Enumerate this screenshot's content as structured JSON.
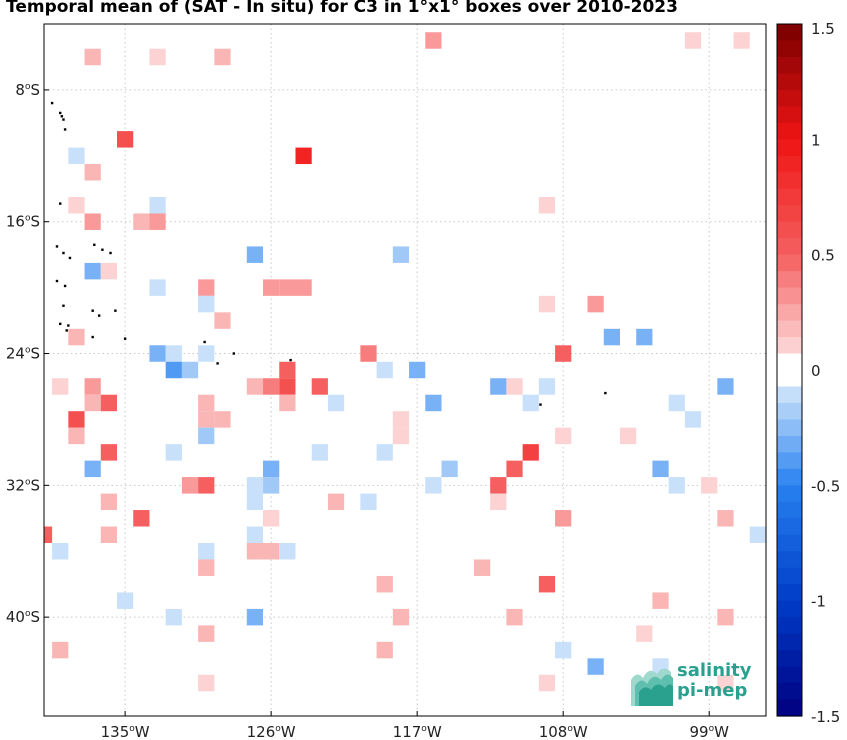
{
  "title": "Temporal mean of (SAT - In situ) for C3 in 1°x1° boxes over 2010-2023",
  "x_ticks": [
    {
      "lon": -135,
      "label": "135",
      "hemi": "W"
    },
    {
      "lon": -126,
      "label": "126",
      "hemi": "W"
    },
    {
      "lon": -117,
      "label": "117",
      "hemi": "W"
    },
    {
      "lon": -108,
      "label": "108",
      "hemi": "W"
    },
    {
      "lon": -99,
      "label": "99",
      "hemi": "W"
    }
  ],
  "y_ticks": [
    {
      "lat": -8,
      "label": "8",
      "hemi": "S"
    },
    {
      "lat": -16,
      "label": "16",
      "hemi": "S"
    },
    {
      "lat": -24,
      "label": "24",
      "hemi": "S"
    },
    {
      "lat": -32,
      "label": "32",
      "hemi": "S"
    },
    {
      "lat": -40,
      "label": "40",
      "hemi": "S"
    }
  ],
  "colorbar": {
    "min": -1.5,
    "max": 1.5,
    "ticks": [
      {
        "value": 1.5,
        "label": "1.5"
      },
      {
        "value": 1,
        "label": "1"
      },
      {
        "value": 0.5,
        "label": "0.5"
      },
      {
        "value": 0,
        "label": "0"
      },
      {
        "value": -0.5,
        "label": "-0.5"
      },
      {
        "value": -1,
        "label": "-1"
      },
      {
        "value": -1.5,
        "label": "-1.5"
      }
    ]
  },
  "logo": {
    "line1": "salinity",
    "line2": "pi-mep",
    "color": "#2aa08f"
  },
  "chart_data": {
    "type": "heatmap",
    "title": "Temporal mean of (SAT - In situ) for C3 in 1°x1° boxes over 2010-2023",
    "xlim": [
      -140,
      -95.5
    ],
    "ylim": [
      -46,
      -4
    ],
    "grid": true,
    "cell_size_deg": 1,
    "cells": [
      {
        "lon": -137,
        "lat": -6,
        "value": 0.2
      },
      {
        "lon": -133,
        "lat": -6,
        "value": 0.1
      },
      {
        "lon": -129,
        "lat": -6,
        "value": 0.2
      },
      {
        "lon": -116,
        "lat": -5,
        "value": 0.3
      },
      {
        "lon": -100,
        "lat": -5,
        "value": 0.1
      },
      {
        "lon": -97,
        "lat": -5,
        "value": 0.1
      },
      {
        "lon": -135,
        "lat": -11,
        "value": 0.6
      },
      {
        "lon": -138,
        "lat": -12,
        "value": -0.1
      },
      {
        "lon": -124,
        "lat": -12,
        "value": 0.9
      },
      {
        "lon": -137,
        "lat": -13,
        "value": 0.2
      },
      {
        "lon": -138,
        "lat": -15,
        "value": 0.1
      },
      {
        "lon": -133,
        "lat": -15,
        "value": -0.1
      },
      {
        "lon": -109,
        "lat": -15,
        "value": 0.1
      },
      {
        "lon": -137,
        "lat": -16,
        "value": 0.3
      },
      {
        "lon": -134,
        "lat": -16,
        "value": 0.2
      },
      {
        "lon": -133,
        "lat": -16,
        "value": 0.3
      },
      {
        "lon": -127,
        "lat": -18,
        "value": -0.3
      },
      {
        "lon": -118,
        "lat": -18,
        "value": -0.2
      },
      {
        "lon": -137,
        "lat": -19,
        "value": -0.3
      },
      {
        "lon": -136,
        "lat": -19,
        "value": 0.1
      },
      {
        "lon": -133,
        "lat": -20,
        "value": -0.1
      },
      {
        "lon": -130,
        "lat": -20,
        "value": 0.3
      },
      {
        "lon": -126,
        "lat": -20,
        "value": 0.3
      },
      {
        "lon": -125,
        "lat": -20,
        "value": 0.3
      },
      {
        "lon": -124,
        "lat": -20,
        "value": 0.3
      },
      {
        "lon": -130,
        "lat": -21,
        "value": -0.1
      },
      {
        "lon": -109,
        "lat": -21,
        "value": 0.1
      },
      {
        "lon": -106,
        "lat": -21,
        "value": 0.3
      },
      {
        "lon": -138,
        "lat": -23,
        "value": 0.2
      },
      {
        "lon": -129,
        "lat": -22,
        "value": 0.2
      },
      {
        "lon": -105,
        "lat": -23,
        "value": -0.3
      },
      {
        "lon": -103,
        "lat": -23,
        "value": -0.3
      },
      {
        "lon": -133,
        "lat": -24,
        "value": -0.3
      },
      {
        "lon": -132,
        "lat": -24,
        "value": -0.1
      },
      {
        "lon": -130,
        "lat": -24,
        "value": -0.1
      },
      {
        "lon": -120,
        "lat": -24,
        "value": 0.4
      },
      {
        "lon": -108,
        "lat": -24,
        "value": 0.5
      },
      {
        "lon": -132,
        "lat": -25,
        "value": -0.4
      },
      {
        "lon": -131,
        "lat": -25,
        "value": -0.2
      },
      {
        "lon": -125,
        "lat": -25,
        "value": 0.5
      },
      {
        "lon": -119,
        "lat": -25,
        "value": -0.1
      },
      {
        "lon": -117,
        "lat": -25,
        "value": -0.3
      },
      {
        "lon": -139,
        "lat": -26,
        "value": 0.1
      },
      {
        "lon": -137,
        "lat": -26,
        "value": 0.3
      },
      {
        "lon": -127,
        "lat": -26,
        "value": 0.2
      },
      {
        "lon": -126,
        "lat": -26,
        "value": 0.4
      },
      {
        "lon": -125,
        "lat": -26,
        "value": 0.6
      },
      {
        "lon": -123,
        "lat": -26,
        "value": 0.5
      },
      {
        "lon": -112,
        "lat": -26,
        "value": -0.3
      },
      {
        "lon": -111,
        "lat": -26,
        "value": 0.1
      },
      {
        "lon": -109,
        "lat": -26,
        "value": -0.1
      },
      {
        "lon": -98,
        "lat": -26,
        "value": -0.3
      },
      {
        "lon": -137,
        "lat": -27,
        "value": 0.2
      },
      {
        "lon": -136,
        "lat": -27,
        "value": 0.5
      },
      {
        "lon": -130,
        "lat": -27,
        "value": 0.2
      },
      {
        "lon": -125,
        "lat": -27,
        "value": 0.2
      },
      {
        "lon": -122,
        "lat": -27,
        "value": -0.1
      },
      {
        "lon": -116,
        "lat": -27,
        "value": -0.3
      },
      {
        "lon": -110,
        "lat": -27,
        "value": -0.1
      },
      {
        "lon": -101,
        "lat": -27,
        "value": -0.1
      },
      {
        "lon": -138,
        "lat": -28,
        "value": 0.6
      },
      {
        "lon": -130,
        "lat": -28,
        "value": 0.2
      },
      {
        "lon": -129,
        "lat": -28,
        "value": 0.2
      },
      {
        "lon": -118,
        "lat": -28,
        "value": 0.1
      },
      {
        "lon": -100,
        "lat": -28,
        "value": -0.1
      },
      {
        "lon": -138,
        "lat": -29,
        "value": 0.2
      },
      {
        "lon": -130,
        "lat": -29,
        "value": -0.2
      },
      {
        "lon": -118,
        "lat": -29,
        "value": 0.1
      },
      {
        "lon": -108,
        "lat": -29,
        "value": 0.1
      },
      {
        "lon": -104,
        "lat": -29,
        "value": 0.1
      },
      {
        "lon": -136,
        "lat": -30,
        "value": 0.5
      },
      {
        "lon": -132,
        "lat": -30,
        "value": -0.1
      },
      {
        "lon": -123,
        "lat": -30,
        "value": -0.1
      },
      {
        "lon": -119,
        "lat": -30,
        "value": -0.1
      },
      {
        "lon": -110,
        "lat": -30,
        "value": 0.7
      },
      {
        "lon": -137,
        "lat": -31,
        "value": -0.3
      },
      {
        "lon": -126,
        "lat": -31,
        "value": -0.3
      },
      {
        "lon": -115,
        "lat": -31,
        "value": -0.2
      },
      {
        "lon": -111,
        "lat": -31,
        "value": 0.5
      },
      {
        "lon": -102,
        "lat": -31,
        "value": -0.3
      },
      {
        "lon": -131,
        "lat": -32,
        "value": 0.3
      },
      {
        "lon": -130,
        "lat": -32,
        "value": 0.5
      },
      {
        "lon": -127,
        "lat": -32,
        "value": -0.1
      },
      {
        "lon": -126,
        "lat": -32,
        "value": -0.2
      },
      {
        "lon": -116,
        "lat": -32,
        "value": -0.1
      },
      {
        "lon": -112,
        "lat": -32,
        "value": 0.5
      },
      {
        "lon": -101,
        "lat": -32,
        "value": -0.1
      },
      {
        "lon": -99,
        "lat": -32,
        "value": 0.1
      },
      {
        "lon": -136,
        "lat": -33,
        "value": 0.2
      },
      {
        "lon": -127,
        "lat": -33,
        "value": -0.1
      },
      {
        "lon": -122,
        "lat": -33,
        "value": 0.2
      },
      {
        "lon": -120,
        "lat": -33,
        "value": -0.1
      },
      {
        "lon": -112,
        "lat": -33,
        "value": 0.1
      },
      {
        "lon": -134,
        "lat": -34,
        "value": 0.5
      },
      {
        "lon": -126,
        "lat": -34,
        "value": 0.1
      },
      {
        "lon": -108,
        "lat": -34,
        "value": 0.3
      },
      {
        "lon": -98,
        "lat": -34,
        "value": 0.2
      },
      {
        "lon": -140,
        "lat": -35,
        "value": 0.5
      },
      {
        "lon": -136,
        "lat": -35,
        "value": 0.2
      },
      {
        "lon": -127,
        "lat": -35,
        "value": -0.1
      },
      {
        "lon": -96,
        "lat": -35,
        "value": -0.1
      },
      {
        "lon": -139,
        "lat": -36,
        "value": -0.1
      },
      {
        "lon": -130,
        "lat": -36,
        "value": -0.1
      },
      {
        "lon": -127,
        "lat": -36,
        "value": 0.2
      },
      {
        "lon": -126,
        "lat": -36,
        "value": 0.2
      },
      {
        "lon": -125,
        "lat": -36,
        "value": -0.1
      },
      {
        "lon": -130,
        "lat": -37,
        "value": 0.2
      },
      {
        "lon": -113,
        "lat": -37,
        "value": 0.2
      },
      {
        "lon": -119,
        "lat": -38,
        "value": 0.2
      },
      {
        "lon": -109,
        "lat": -38,
        "value": 0.5
      },
      {
        "lon": -135,
        "lat": -39,
        "value": -0.1
      },
      {
        "lon": -102,
        "lat": -39,
        "value": 0.2
      },
      {
        "lon": -132,
        "lat": -40,
        "value": -0.1
      },
      {
        "lon": -127,
        "lat": -40,
        "value": -0.3
      },
      {
        "lon": -118,
        "lat": -40,
        "value": 0.2
      },
      {
        "lon": -111,
        "lat": -40,
        "value": 0.2
      },
      {
        "lon": -98,
        "lat": -40,
        "value": 0.2
      },
      {
        "lon": -130,
        "lat": -41,
        "value": 0.2
      },
      {
        "lon": -103,
        "lat": -41,
        "value": 0.1
      },
      {
        "lon": -139,
        "lat": -42,
        "value": 0.2
      },
      {
        "lon": -119,
        "lat": -42,
        "value": 0.2
      },
      {
        "lon": -108,
        "lat": -42,
        "value": -0.1
      },
      {
        "lon": -106,
        "lat": -43,
        "value": -0.3
      },
      {
        "lon": -102,
        "lat": -43,
        "value": -0.1
      },
      {
        "lon": -130,
        "lat": -44,
        "value": 0.1
      },
      {
        "lon": -109,
        "lat": -44,
        "value": 0.1
      },
      {
        "lon": -98,
        "lat": -44,
        "value": 0.1
      }
    ],
    "islands": [
      [
        -139.5,
        -8.8
      ],
      [
        -139.0,
        -9.4
      ],
      [
        -138.9,
        -9.6
      ],
      [
        -138.8,
        -9.8
      ],
      [
        -138.7,
        -10.4
      ],
      [
        -139.0,
        -14.9
      ],
      [
        -139.2,
        -17.5
      ],
      [
        -138.8,
        -17.9
      ],
      [
        -138.4,
        -18.2
      ],
      [
        -136.9,
        -17.4
      ],
      [
        -136.4,
        -17.7
      ],
      [
        -135.9,
        -17.9
      ],
      [
        -139.2,
        -19.6
      ],
      [
        -138.7,
        -19.9
      ],
      [
        -138.8,
        -21.1
      ],
      [
        -137.0,
        -21.4
      ],
      [
        -136.6,
        -21.7
      ],
      [
        -135.6,
        -21.4
      ],
      [
        -139.0,
        -22.2
      ],
      [
        -138.6,
        -22.6
      ],
      [
        -138.5,
        -22.3
      ],
      [
        -137.0,
        -23.0
      ],
      [
        -135.0,
        -23.1
      ],
      [
        -130.1,
        -23.3
      ],
      [
        -128.3,
        -24.0
      ],
      [
        -124.8,
        -24.4
      ],
      [
        -129.3,
        -24.6
      ],
      [
        -109.4,
        -27.1
      ],
      [
        -105.4,
        -26.4
      ]
    ]
  }
}
